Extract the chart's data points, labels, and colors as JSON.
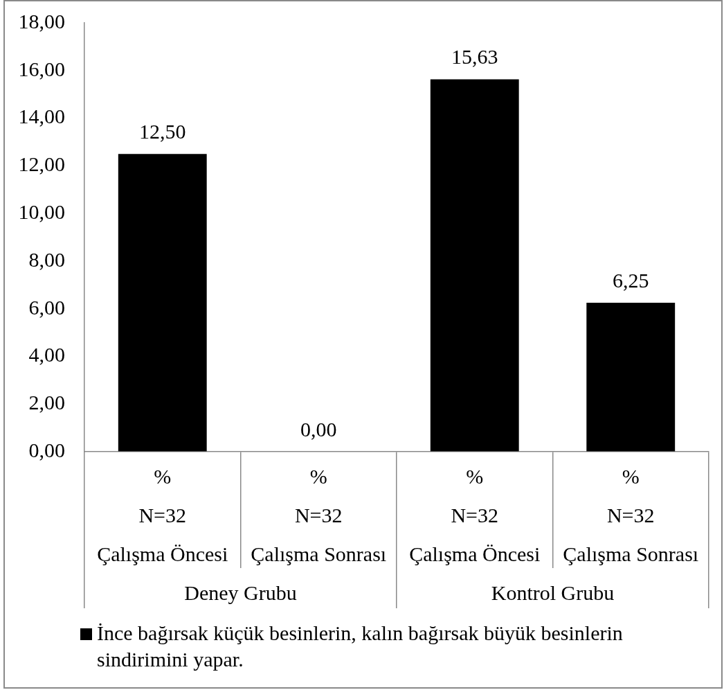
{
  "chart_data": {
    "type": "bar",
    "categories": [
      "%\nN=32\nÇalışma Öncesi",
      "%\nN=32\nÇalışma Sonrası",
      "%\nN=32\nÇalışma Öncesi",
      "%\nN=32\nÇalışma Sonrası"
    ],
    "series": [
      {
        "name": "İnce bağırsak küçük besinlerin, kalın bağırsak büyük besinlerin sindirimini yapar.",
        "color": "#000000",
        "values": [
          12.5,
          0,
          15.63,
          6.25
        ],
        "value_labels": [
          "12,50",
          "0,00",
          "15,63",
          "6,25"
        ]
      }
    ],
    "ylim": [
      0,
      18
    ],
    "yticks": [
      {
        "value": 0,
        "label": "0,00"
      },
      {
        "value": 2,
        "label": "2,00"
      },
      {
        "value": 4,
        "label": "4,00"
      },
      {
        "value": 6,
        "label": "6,00"
      },
      {
        "value": 8,
        "label": "8,00"
      },
      {
        "value": 10,
        "label": "10,00"
      },
      {
        "value": 12,
        "label": "12,00"
      },
      {
        "value": 14,
        "label": "14,00"
      },
      {
        "value": 16,
        "label": "16,00"
      },
      {
        "value": 18,
        "label": "18,00"
      }
    ],
    "annotations": [
      "Deney Grubu",
      "Kontrol Grubu"
    ],
    "grid": false,
    "legend": "bottom"
  }
}
